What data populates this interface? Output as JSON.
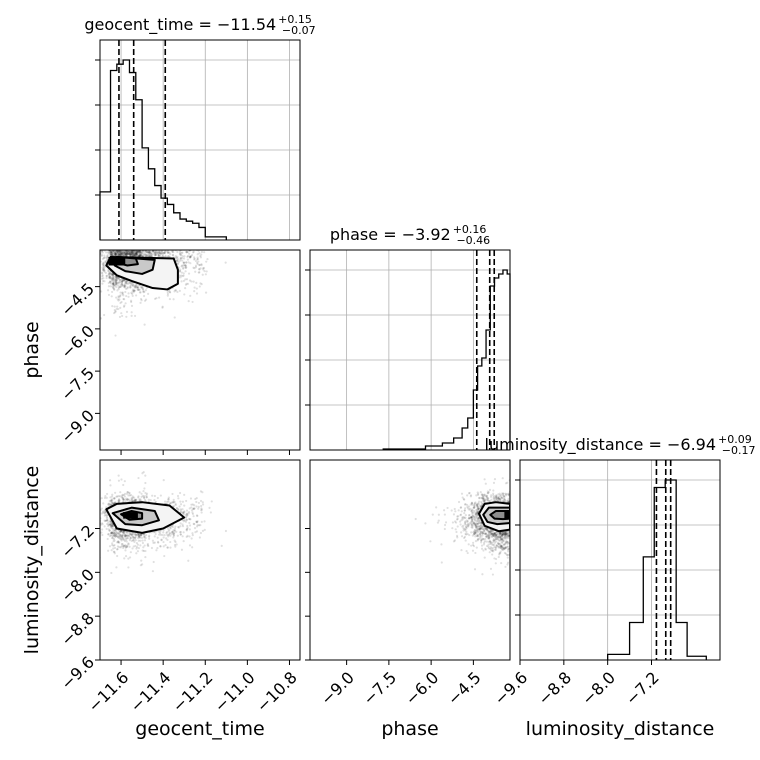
{
  "chart_data": {
    "type": "corner",
    "grid": true,
    "parameters": [
      {
        "name": "geocent_time",
        "xlabel": "geocent_time",
        "ylabel": "",
        "range": [
          -11.7,
          -10.75
        ],
        "ticks": [
          "−11.6",
          "−11.4",
          "−11.2",
          "−11.0",
          "−10.8"
        ],
        "tick_values": [
          -11.6,
          -11.4,
          -11.2,
          -11.0,
          -10.8
        ],
        "title": {
          "main": "geocent_time = −11.54",
          "plus": "+0.15",
          "minus": "−0.07"
        },
        "quantiles": [
          -11.61,
          -11.54,
          -11.39
        ],
        "histogram": {
          "edges": [
            -11.7,
            -11.65,
            -11.62,
            -11.59,
            -11.56,
            -11.53,
            -11.5,
            -11.47,
            -11.44,
            -11.41,
            -11.38,
            -11.35,
            -11.32,
            -11.29,
            -11.26,
            -11.23,
            -11.2,
            -11.1
          ],
          "counts": [
            0.23,
            0.81,
            0.84,
            0.86,
            0.8,
            0.67,
            0.44,
            0.34,
            0.26,
            0.2,
            0.17,
            0.13,
            0.1,
            0.09,
            0.08,
            0.06,
            0.015
          ]
        }
      },
      {
        "name": "phase",
        "xlabel": "phase",
        "ylabel": "phase",
        "range": [
          -10.3,
          -3.2
        ],
        "ticks": [
          "−9.0",
          "−7.5",
          "−6.0",
          "−4.5"
        ],
        "tick_values": [
          -9.0,
          -7.5,
          -6.0,
          -4.5
        ],
        "title": {
          "main": "phase = −3.92",
          "plus": "+0.16",
          "minus": "−0.46"
        },
        "quantiles": [
          -4.38,
          -3.92,
          -3.76
        ],
        "histogram": {
          "edges": [
            -7.7,
            -6.2,
            -5.6,
            -5.2,
            -4.9,
            -4.7,
            -4.5,
            -4.35,
            -4.2,
            -4.05,
            -3.9,
            -3.75,
            -3.6,
            -3.45,
            -3.3,
            -3.2
          ],
          "counts": [
            0.005,
            0.02,
            0.035,
            0.06,
            0.11,
            0.16,
            0.3,
            0.42,
            0.46,
            0.6,
            0.82,
            0.86,
            0.88,
            0.9,
            0.88
          ]
        }
      },
      {
        "name": "luminosity_distance",
        "xlabel": "luminosity_distance",
        "ylabel": "luminosity_distance",
        "range": [
          -9.6,
          -5.95
        ],
        "ticks": [
          "−9.6",
          "−8.8",
          "−8.0",
          "−7.2"
        ],
        "tick_values": [
          -9.6,
          -8.8,
          -8.0,
          -7.2
        ],
        "title": {
          "main": "luminosity_distance = −6.94",
          "plus": "+0.09",
          "minus": "−0.17"
        },
        "quantiles": [
          -7.11,
          -6.94,
          -6.85
        ],
        "histogram": {
          "edges": [
            -8.0,
            -7.6,
            -7.35,
            -7.15,
            -6.95,
            -6.75,
            -6.55,
            -6.2
          ],
          "counts": [
            0.03,
            0.2,
            0.55,
            0.92,
            0.96,
            0.2,
            0.02
          ]
        }
      }
    ],
    "panels": [
      {
        "x": "geocent_time",
        "y": "phase",
        "contours": [
          [
            [
              -11.65,
              -3.45
            ],
            [
              -11.67,
              -3.75
            ],
            [
              -11.62,
              -4.1
            ],
            [
              -11.55,
              -4.3
            ],
            [
              -11.45,
              -4.55
            ],
            [
              -11.38,
              -4.6
            ],
            [
              -11.33,
              -4.4
            ],
            [
              -11.33,
              -3.9
            ],
            [
              -11.35,
              -3.5
            ]
          ],
          [
            [
              -11.62,
              -3.45
            ],
            [
              -11.63,
              -3.75
            ],
            [
              -11.58,
              -3.95
            ],
            [
              -11.5,
              -4.05
            ],
            [
              -11.45,
              -3.9
            ],
            [
              -11.44,
              -3.55
            ]
          ],
          [
            [
              -11.62,
              -3.45
            ],
            [
              -11.62,
              -3.65
            ],
            [
              -11.57,
              -3.75
            ],
            [
              -11.52,
              -3.7
            ],
            [
              -11.53,
              -3.5
            ]
          ]
        ],
        "density_core": {
          "x": [
            -11.66,
            -11.58
          ],
          "y": [
            -3.45,
            -3.75
          ]
        }
      },
      {
        "x": "geocent_time",
        "y": "luminosity_distance",
        "contours": [
          [
            [
              -11.67,
              -6.85
            ],
            [
              -11.62,
              -7.2
            ],
            [
              -11.5,
              -7.28
            ],
            [
              -11.4,
              -7.2
            ],
            [
              -11.3,
              -7.0
            ],
            [
              -11.37,
              -6.78
            ],
            [
              -11.5,
              -6.72
            ],
            [
              -11.62,
              -6.75
            ]
          ],
          [
            [
              -11.64,
              -6.92
            ],
            [
              -11.58,
              -7.12
            ],
            [
              -11.5,
              -7.14
            ],
            [
              -11.42,
              -7.05
            ],
            [
              -11.44,
              -6.88
            ],
            [
              -11.55,
              -6.82
            ]
          ],
          [
            [
              -11.6,
              -6.94
            ],
            [
              -11.56,
              -7.04
            ],
            [
              -11.5,
              -7.02
            ],
            [
              -11.5,
              -6.92
            ],
            [
              -11.55,
              -6.88
            ]
          ]
        ],
        "density_core": {
          "x": [
            -11.59,
            -11.52
          ],
          "y": [
            -6.9,
            -7.02
          ]
        }
      },
      {
        "x": "phase",
        "y": "luminosity_distance",
        "contours": [
          [
            [
              -4.3,
              -6.93
            ],
            [
              -4.1,
              -6.75
            ],
            [
              -3.7,
              -6.72
            ],
            [
              -3.2,
              -6.75
            ],
            [
              -3.2,
              -7.22
            ],
            [
              -3.6,
              -7.25
            ],
            [
              -4.1,
              -7.15
            ]
          ],
          [
            [
              -4.15,
              -6.95
            ],
            [
              -3.95,
              -6.82
            ],
            [
              -3.6,
              -6.82
            ],
            [
              -3.2,
              -6.82
            ],
            [
              -3.2,
              -7.1
            ],
            [
              -3.65,
              -7.12
            ],
            [
              -4.0,
              -7.08
            ]
          ],
          [
            [
              -3.9,
              -6.95
            ],
            [
              -3.7,
              -6.88
            ],
            [
              -3.4,
              -6.88
            ],
            [
              -3.2,
              -6.88
            ],
            [
              -3.2,
              -7.02
            ],
            [
              -3.45,
              -7.03
            ],
            [
              -3.75,
              -7.02
            ]
          ]
        ],
        "density_core": {
          "x": [
            -3.4,
            -3.2
          ],
          "y": [
            -6.88,
            -7.02
          ]
        }
      }
    ]
  }
}
